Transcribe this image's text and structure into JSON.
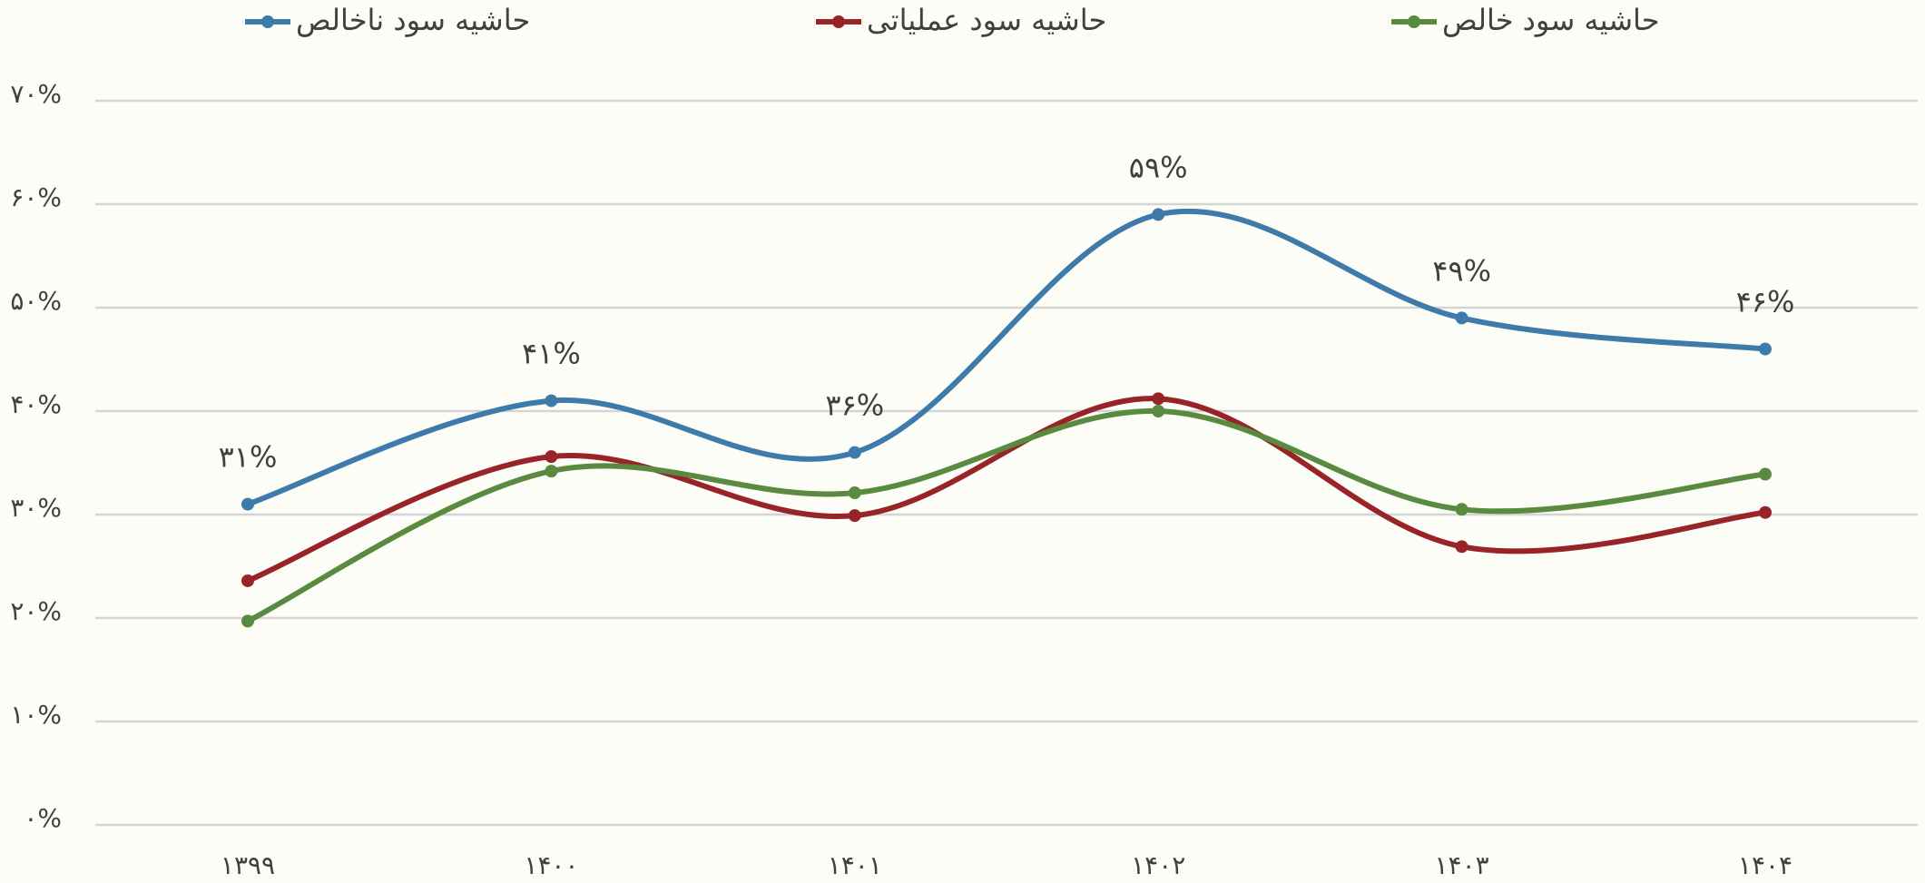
{
  "chart_data": {
    "type": "line",
    "categories": [
      "۱۳۹۹",
      "۱۴۰۰",
      "۱۴۰۱",
      "۱۴۰۲",
      "۱۴۰۳",
      "۱۴۰۴"
    ],
    "series": [
      {
        "name": "حاشیه سود ناخالص",
        "color": "#3e7bab",
        "values": [
          31,
          41,
          36,
          59,
          49,
          46
        ],
        "value_labels": [
          "۳۱%",
          "۴۱%",
          "۳۶%",
          "۵۹%",
          "۴۹%",
          "۴۶%"
        ]
      },
      {
        "name": "حاشیه سود عملیاتی",
        "color": "#982428",
        "values": [
          23.6,
          35.6,
          29.9,
          41.2,
          26.9,
          30.2
        ]
      },
      {
        "name": "حاشیه سود خالص",
        "color": "#5a8a3f",
        "values": [
          19.7,
          34.2,
          32.1,
          40.0,
          30.5,
          33.9
        ]
      }
    ],
    "ylim": [
      0,
      70
    ],
    "yticks": [
      {
        "value": 0,
        "label": "۰%"
      },
      {
        "value": 10,
        "label": "۱۰%"
      },
      {
        "value": 20,
        "label": "۲۰%"
      },
      {
        "value": 30,
        "label": "۳۰%"
      },
      {
        "value": 40,
        "label": "۴۰%"
      },
      {
        "value": 50,
        "label": "۵۰%"
      },
      {
        "value": 60,
        "label": "۶۰%"
      },
      {
        "value": 70,
        "label": "۷۰%"
      }
    ],
    "grid": true,
    "legend": "top",
    "smooth": true
  }
}
